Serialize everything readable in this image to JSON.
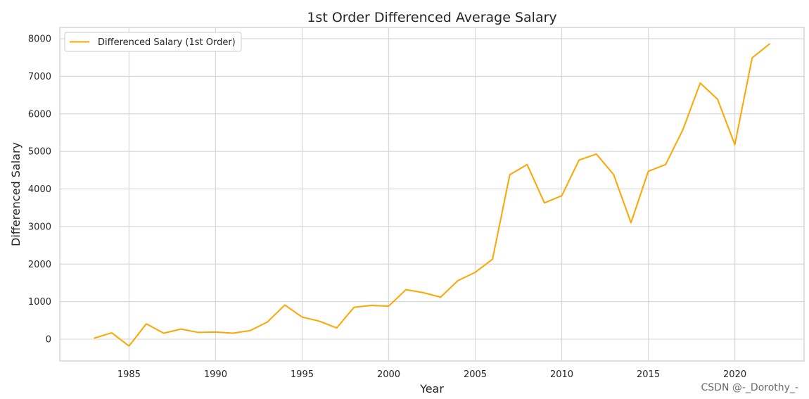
{
  "chart_data": {
    "type": "line",
    "title": "1st Order Differenced Average Salary",
    "xlabel": "Year",
    "ylabel": "Differenced Salary",
    "xlim": [
      1981,
      2024
    ],
    "ylim": [
      -580,
      8300
    ],
    "xticks": [
      1985,
      1990,
      1995,
      2000,
      2005,
      2010,
      2015,
      2020
    ],
    "yticks": [
      0,
      1000,
      2000,
      3000,
      4000,
      5000,
      6000,
      7000,
      8000
    ],
    "grid": true,
    "legend_position": "top-left",
    "series": [
      {
        "name": "Differenced Salary (1st Order)",
        "color": "#FFA500",
        "x": [
          1983,
          1984,
          1985,
          1986,
          1987,
          1988,
          1989,
          1990,
          1991,
          1992,
          1993,
          1994,
          1995,
          1996,
          1997,
          1998,
          1999,
          2000,
          2001,
          2002,
          2003,
          2004,
          2005,
          2006,
          2007,
          2008,
          2009,
          2010,
          2011,
          2012,
          2013,
          2014,
          2015,
          2016,
          2017,
          2018,
          2019,
          2020,
          2021,
          2022
        ],
        "y": [
          30,
          170,
          -180,
          410,
          160,
          270,
          180,
          190,
          160,
          230,
          460,
          910,
          590,
          480,
          300,
          850,
          900,
          880,
          1320,
          1240,
          1120,
          1560,
          1780,
          2130,
          4380,
          4650,
          3630,
          3820,
          4770,
          4930,
          4380,
          3100,
          4470,
          4650,
          5580,
          6820,
          6390,
          5180,
          7490,
          7860
        ]
      }
    ]
  },
  "watermark": "CSDN @-_Dorothy_-"
}
